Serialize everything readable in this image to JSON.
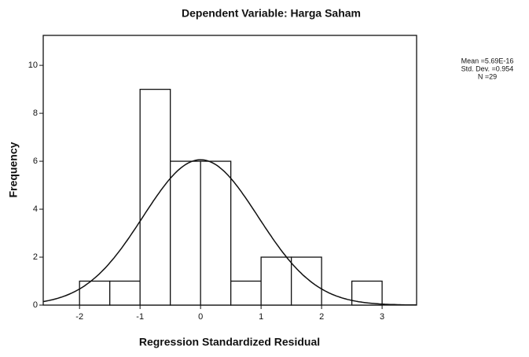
{
  "chart_data": {
    "type": "histogram",
    "title": "Dependent Variable: Harga Saham",
    "x_label": "Regression Standardized Residual",
    "y_label": "Frequency",
    "bins": [
      -2,
      -1.5,
      -1,
      -0.5,
      0,
      0.5,
      1,
      1.5,
      2,
      2.5,
      3
    ],
    "values": [
      1,
      1,
      9,
      6,
      6,
      1,
      2,
      2,
      0,
      1
    ],
    "color": "#ffffff",
    "stats": [
      {
        "value": 5.69e-16,
        "label": "Mean =5.69E-16"
      },
      {
        "value": 0.954,
        "label": "Std. Dev. =0.954"
      },
      {
        "value": 29,
        "label": "N =29"
      }
    ],
    "xlim": [
      -2.6,
      3.57
    ],
    "xticks": [
      -2,
      -1,
      0,
      1,
      2,
      3
    ],
    "ylim": [
      0,
      11.25
    ],
    "yticks": [
      0,
      2,
      4,
      6,
      8,
      10
    ]
  }
}
